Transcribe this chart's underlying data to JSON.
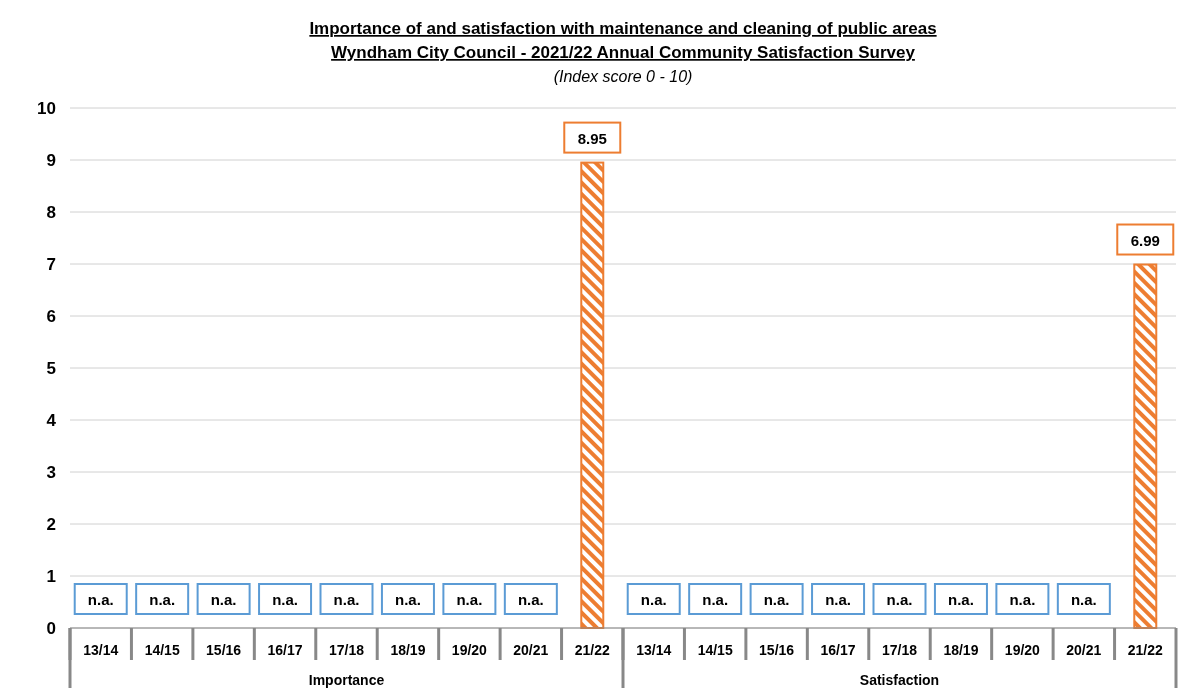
{
  "chart_data": {
    "type": "bar",
    "title": "Importance of and satisfaction with maintenance and cleaning of public areas\nWyndham City Council - 2021/22 Annual Community Satisfaction Survey",
    "subtitle": "(Index score 0 - 10)",
    "categories": [
      "13/14",
      "14/15",
      "15/16",
      "16/17",
      "17/18",
      "18/19",
      "19/20",
      "20/21",
      "21/22",
      "13/14",
      "14/15",
      "15/16",
      "16/17",
      "17/18",
      "18/19",
      "19/20",
      "20/21",
      "21/22"
    ],
    "values": [
      null,
      null,
      null,
      null,
      null,
      null,
      null,
      null,
      8.95,
      null,
      null,
      null,
      null,
      null,
      null,
      null,
      null,
      6.99
    ],
    "value_labels": [
      "n.a.",
      "n.a.",
      "n.a.",
      "n.a.",
      "n.a.",
      "n.a.",
      "n.a.",
      "n.a.",
      "8.95",
      "n.a.",
      "n.a.",
      "n.a.",
      "n.a.",
      "n.a.",
      "n.a.",
      "n.a.",
      "n.a.",
      "6.99"
    ],
    "color": "#ed7d31",
    "annotations": [
      "Importance",
      "Satisfaction"
    ],
    "ylim": [
      0,
      10
    ],
    "yticks": [
      0,
      1,
      2,
      3,
      4,
      5,
      6,
      7,
      8,
      9,
      10
    ],
    "grid": "y"
  }
}
